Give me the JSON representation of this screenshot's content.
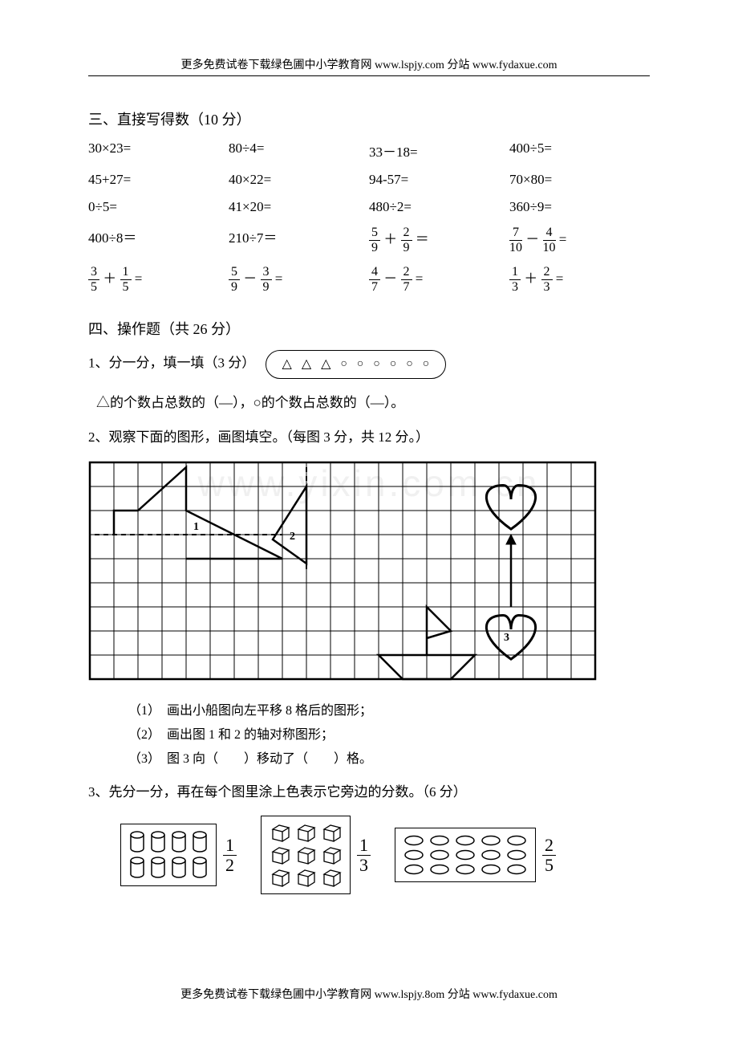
{
  "header": "更多免费试卷下载绿色圃中小学教育网 www.lspjy.com  分站 www.fydaxue.com",
  "footer": "更多免费试卷下载绿色圃中小学教育网 www.lspjy.8om  分站 www.fydaxue.com",
  "watermark": "www.yixin.com.cn",
  "section3": {
    "title": "三、直接写得数（10 分）",
    "rows": [
      [
        "30×23=",
        "80÷4=",
        "33－18=",
        "400÷5="
      ],
      [
        "45+27=",
        "40×22=",
        "94-57=",
        "70×80="
      ],
      [
        "0÷5=",
        "41×20=",
        "480÷2=",
        "360÷9="
      ]
    ],
    "frac_row1": {
      "c1": "400÷8＝",
      "c2": "210÷7＝",
      "c3": {
        "a_n": "5",
        "a_d": "9",
        "op": "＋",
        "b_n": "2",
        "b_d": "9"
      },
      "c4": {
        "a_n": "7",
        "a_d": "10",
        "op": "－",
        "b_n": "4",
        "b_d": "10"
      }
    },
    "frac_row2": {
      "c1": {
        "a_n": "3",
        "a_d": "5",
        "op": "＋",
        "b_n": "1",
        "b_d": "5"
      },
      "c2": {
        "a_n": "5",
        "a_d": "9",
        "op": "－",
        "b_n": "3",
        "b_d": "9"
      },
      "c3": {
        "a_n": "4",
        "a_d": "7",
        "op": "－",
        "b_n": "2",
        "b_d": "7"
      },
      "c4": {
        "a_n": "1",
        "a_d": "3",
        "op": "＋",
        "b_n": "2",
        "b_d": "3"
      }
    }
  },
  "section4": {
    "title": "四、操作题（共 26 分）",
    "q1_prefix": "1、分一分，填一填（3 分）",
    "q1_shapes": {
      "triangles": 3,
      "circles": 6
    },
    "q1_text": "△的个数占总数的（—），○的个数占总数的（—）。",
    "q2_title": "2、观察下面的图形，画图填空。（每图 3 分，共 12 分。）",
    "q2_diagram": {
      "cols": 21,
      "rows": 9,
      "cell": 30,
      "grid_color": "#000000",
      "stroke": "#000000",
      "label1": "1",
      "label2": "2",
      "label3": "3",
      "dash": "6,5"
    },
    "q2_subs": [
      "（1）　画出小船图向左平移 8 格后的图形；",
      "（2）　画出图 1 和 2 的轴对称图形；",
      "（3）　图 3 向（　　）移动了（　　）格。"
    ],
    "q3_title": "3、先分一分，再在每个图里涂上色表示它旁边的分数。（6 分）",
    "q3_items": [
      {
        "kind": "cylinders",
        "cols": 4,
        "rows": 2,
        "frac_n": "1",
        "frac_d": "2"
      },
      {
        "kind": "cubes",
        "cols": 3,
        "rows": 3,
        "frac_n": "1",
        "frac_d": "3"
      },
      {
        "kind": "ovals",
        "cols": 5,
        "rows": 3,
        "frac_n": "2",
        "frac_d": "5"
      }
    ]
  },
  "colors": {
    "text": "#000000",
    "bg": "#ffffff",
    "line": "#000000"
  }
}
